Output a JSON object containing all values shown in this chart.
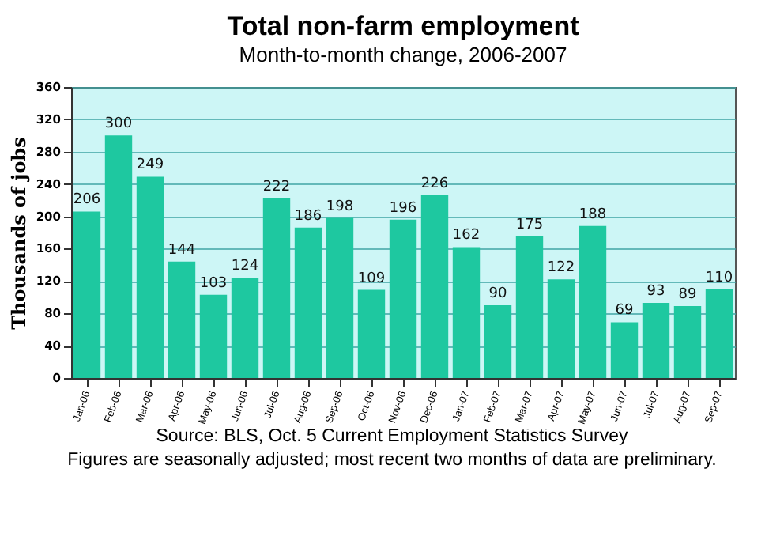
{
  "chart_data": {
    "type": "bar",
    "title": "Total non-farm employment",
    "subtitle": "Month-to-month change, 2006-2007",
    "ylabel": "Thousands of jobs",
    "categories": [
      "Jan-06",
      "Feb-06",
      "Mar-06",
      "Apr-06",
      "May-06",
      "Jun-06",
      "Jul-06",
      "Aug-06",
      "Sep-06",
      "Oct-06",
      "Nov-06",
      "Dec-06",
      "Jan-07",
      "Feb-07",
      "Mar-07",
      "Apr-07",
      "May-07",
      "Jun-07",
      "Jul-07",
      "Aug-07",
      "Sep-07"
    ],
    "values": [
      206,
      300,
      249,
      144,
      103,
      124,
      222,
      186,
      198,
      109,
      196,
      226,
      162,
      90,
      175,
      122,
      188,
      69,
      93,
      89,
      110
    ],
    "color": "#1ec8a0",
    "data_labels": true,
    "grid": "y",
    "ylim": [
      0,
      360
    ],
    "yticks": [
      0,
      40,
      80,
      120,
      160,
      200,
      240,
      280,
      320,
      360
    ],
    "annotations": [
      "Source: BLS, Oct. 5 Current Employment Statistics Survey",
      "Figures are seasonally adjusted; most recent two months of data are preliminary."
    ]
  }
}
